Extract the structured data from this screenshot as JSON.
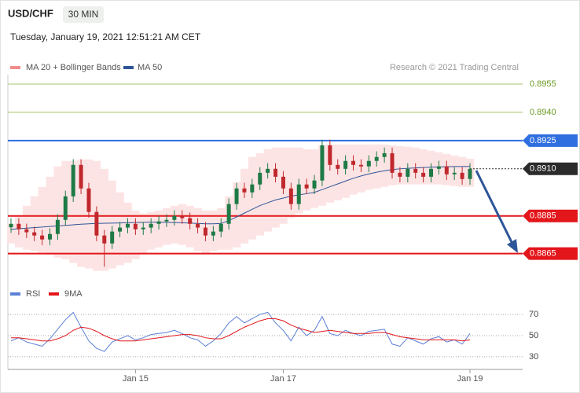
{
  "header": {
    "symbol": "USD/CHF",
    "timeframe": "30 MIN",
    "timestamp": "Tuesday, January 19, 2021 12:51:21 AM CET"
  },
  "chart_data": [
    {
      "type": "candlestick",
      "credit": "Research © 2021 Trading Central",
      "categories": [
        null,
        null,
        null,
        null,
        null,
        null,
        null,
        null,
        null,
        null,
        null,
        null,
        null,
        null,
        null,
        null,
        "Jan 15",
        null,
        null,
        null,
        null,
        null,
        null,
        null,
        null,
        null,
        null,
        null,
        null,
        null,
        null,
        null,
        null,
        null,
        null,
        "Jan 17",
        null,
        null,
        null,
        null,
        null,
        null,
        null,
        null,
        null,
        null,
        null,
        null,
        null,
        null,
        null,
        null,
        null,
        null,
        null,
        null,
        null,
        null,
        null,
        "Jan 19"
      ],
      "open": [
        0.8879,
        0.88808,
        0.88779,
        0.88763,
        0.88746,
        0.88725,
        0.88754,
        0.88829,
        0.88954,
        0.89121,
        0.88996,
        0.88871,
        0.88746,
        0.88704,
        0.88767,
        0.88788,
        0.88808,
        0.88779,
        0.88788,
        0.88808,
        0.88821,
        0.88829,
        0.8885,
        0.88838,
        0.88808,
        0.88788,
        0.88746,
        0.88767,
        0.88808,
        0.88913,
        0.88996,
        0.88975,
        0.89017,
        0.89079,
        0.891,
        0.89058,
        0.88996,
        0.88913,
        0.89017,
        0.88996,
        0.89038,
        0.89225,
        0.89121,
        0.891,
        0.89142,
        0.89121,
        0.89113,
        0.89142,
        0.89163,
        0.89183,
        0.89079,
        0.89058,
        0.891,
        0.89079,
        0.89058,
        0.891,
        0.89113,
        0.89071,
        0.89079,
        0.89046
      ],
      "high": [
        0.88838,
        0.88838,
        0.88809,
        0.88793,
        0.88776,
        0.88784,
        0.88859,
        0.88984,
        0.89151,
        0.89151,
        0.89026,
        0.88901,
        0.88776,
        0.88797,
        0.88818,
        0.88838,
        0.88838,
        0.88818,
        0.88838,
        0.88851,
        0.88859,
        0.8888,
        0.8888,
        0.88868,
        0.88838,
        0.88818,
        0.88797,
        0.88838,
        0.88943,
        0.89026,
        0.89026,
        0.89047,
        0.89109,
        0.8913,
        0.8913,
        0.89088,
        0.89026,
        0.89047,
        0.89047,
        0.89068,
        0.89255,
        0.89255,
        0.89151,
        0.89172,
        0.89172,
        0.89151,
        0.89172,
        0.89193,
        0.89213,
        0.89213,
        0.89109,
        0.8913,
        0.8913,
        0.89109,
        0.8913,
        0.89143,
        0.89143,
        0.89109,
        0.89109,
        0.8913
      ],
      "low": [
        0.8876,
        0.88749,
        0.88733,
        0.88716,
        0.88695,
        0.88695,
        0.88724,
        0.88799,
        0.88924,
        0.88966,
        0.88841,
        0.88716,
        0.8858,
        0.88674,
        0.88737,
        0.88758,
        0.88749,
        0.88749,
        0.88758,
        0.88778,
        0.88791,
        0.88799,
        0.88808,
        0.88778,
        0.88758,
        0.88716,
        0.88716,
        0.88737,
        0.88778,
        0.88883,
        0.88945,
        0.88945,
        0.88987,
        0.89049,
        0.89028,
        0.88966,
        0.88883,
        0.88883,
        0.88966,
        0.88966,
        0.89008,
        0.89091,
        0.8907,
        0.8907,
        0.89091,
        0.89083,
        0.89083,
        0.89112,
        0.89133,
        0.89049,
        0.89028,
        0.89028,
        0.89049,
        0.89028,
        0.89028,
        0.8907,
        0.89041,
        0.89041,
        0.89016,
        0.89016
      ],
      "close": [
        0.88808,
        0.88779,
        0.88763,
        0.88746,
        0.88725,
        0.88754,
        0.88829,
        0.88954,
        0.89121,
        0.88996,
        0.88871,
        0.88746,
        0.88704,
        0.88767,
        0.88788,
        0.88808,
        0.88779,
        0.88788,
        0.88808,
        0.88821,
        0.88829,
        0.8885,
        0.88838,
        0.88808,
        0.88788,
        0.88746,
        0.88767,
        0.88808,
        0.88913,
        0.88996,
        0.88975,
        0.89017,
        0.89079,
        0.891,
        0.89058,
        0.88996,
        0.88913,
        0.89017,
        0.88996,
        0.89038,
        0.89225,
        0.89121,
        0.891,
        0.89142,
        0.89121,
        0.89113,
        0.89142,
        0.89163,
        0.89183,
        0.89079,
        0.89058,
        0.891,
        0.89079,
        0.89058,
        0.891,
        0.89113,
        0.89071,
        0.89079,
        0.89046,
        0.891
      ],
      "up_color": "#1e7a46",
      "down_color": "#c0282d",
      "series": [
        {
          "name": "MA 20 + Bollinger Bands",
          "color": "#f08c8c",
          "band_color": "#fde4e4",
          "upper": [
            0.88808,
            0.8885,
            0.88904,
            0.88954,
            0.89004,
            0.89058,
            0.89113,
            0.89142,
            0.89142,
            0.8915,
            0.8915,
            0.89142,
            0.891,
            0.89038,
            0.88975,
            0.88921,
            0.88879,
            0.88863,
            0.88871,
            0.88879,
            0.88892,
            0.88904,
            0.88913,
            0.88904,
            0.88892,
            0.88879,
            0.88879,
            0.88892,
            0.88954,
            0.89029,
            0.891,
            0.89163,
            0.89183,
            0.89204,
            0.89213,
            0.89213,
            0.89213,
            0.89213,
            0.89204,
            0.89204,
            0.89225,
            0.89229,
            0.89229,
            0.89229,
            0.89229,
            0.89229,
            0.89229,
            0.89229,
            0.89229,
            0.89225,
            0.89221,
            0.89217,
            0.89213,
            0.89204,
            0.89196,
            0.89188,
            0.89179,
            0.89171,
            0.89163,
            0.89154
          ],
          "lower": [
            0.88704,
            0.88683,
            0.88671,
            0.88663,
            0.88654,
            0.88642,
            0.88629,
            0.88621,
            0.886,
            0.88579,
            0.88571,
            0.88558,
            0.88558,
            0.88571,
            0.88588,
            0.886,
            0.88621,
            0.88654,
            0.88671,
            0.88683,
            0.88696,
            0.88704,
            0.88696,
            0.88683,
            0.88663,
            0.88654,
            0.88663,
            0.88671,
            0.88671,
            0.88683,
            0.88704,
            0.88725,
            0.88746,
            0.88767,
            0.88788,
            0.88808,
            0.88838,
            0.88863,
            0.88879,
            0.88892,
            0.88904,
            0.88921,
            0.88933,
            0.88946,
            0.88963,
            0.88975,
            0.88988,
            0.88996,
            0.89004,
            0.89013,
            0.89017,
            0.89017,
            0.89017,
            0.89017,
            0.89017,
            0.89017,
            0.89013,
            0.89008,
            0.89004,
            0.89004
          ]
        },
        {
          "name": "MA 50",
          "color": "#2e5597",
          "values": [
            0.88779,
            0.88782,
            0.88785,
            0.88788,
            0.88791,
            0.88794,
            0.88797,
            0.888,
            0.88803,
            0.88806,
            0.88808,
            0.8881,
            0.88811,
            0.88812,
            0.88813,
            0.88814,
            0.88815,
            0.88816,
            0.88817,
            0.88817,
            0.88816,
            0.88815,
            0.88814,
            0.88812,
            0.8881,
            0.88808,
            0.88808,
            0.8881,
            0.88825,
            0.88845,
            0.88865,
            0.88885,
            0.88905,
            0.8892,
            0.88935,
            0.88945,
            0.88955,
            0.88962,
            0.88968,
            0.88975,
            0.8899,
            0.89005,
            0.8902,
            0.89035,
            0.8905,
            0.89062,
            0.89073,
            0.89082,
            0.8909,
            0.89096,
            0.891,
            0.89103,
            0.89105,
            0.89107,
            0.89109,
            0.8911,
            0.89111,
            0.89112,
            0.89112,
            0.89113
          ]
        }
      ],
      "levels": [
        {
          "value": 0.8955,
          "label": "0.8955",
          "color": "#a9c46a",
          "boxed": false,
          "dotted": false
        },
        {
          "value": 0.894,
          "label": "0.8940",
          "color": "#a9c46a",
          "boxed": false,
          "dotted": false
        },
        {
          "value": 0.8925,
          "label": "0.8925",
          "color": "#2f6fe0",
          "boxed": true,
          "dotted": false
        },
        {
          "value": 0.891,
          "label": "0.8910",
          "color": "#2b2b2b",
          "boxed": true,
          "dotted": true
        },
        {
          "value": 0.8885,
          "label": "0.8885",
          "color": "#e3161b",
          "boxed": true,
          "dotted": false
        },
        {
          "value": 0.8865,
          "label": "0.8865",
          "color": "#e3161b",
          "boxed": true,
          "dotted": false
        }
      ],
      "ylim": [
        0.8854,
        0.896
      ]
    },
    {
      "type": "line",
      "series": [
        {
          "name": "RSI",
          "color": "#5b7fd6",
          "values": [
            45,
            48,
            44,
            42,
            40,
            47,
            56,
            65,
            72,
            58,
            45,
            38,
            35,
            44,
            47,
            50,
            46,
            48,
            51,
            52,
            53,
            55,
            52,
            48,
            46,
            40,
            45,
            52,
            62,
            68,
            62,
            66,
            70,
            72,
            62,
            55,
            45,
            58,
            50,
            55,
            68,
            52,
            50,
            55,
            52,
            50,
            54,
            55,
            56,
            42,
            40,
            48,
            45,
            42,
            47,
            49,
            44,
            46,
            42,
            52
          ]
        },
        {
          "name": "9MA",
          "color": "#e3161b",
          "values": [
            48,
            48,
            47,
            46,
            45,
            45,
            47,
            50,
            55,
            58,
            57,
            54,
            50,
            47,
            45,
            45,
            45,
            46,
            47,
            48,
            49,
            50,
            51,
            51,
            50,
            48,
            47,
            47,
            50,
            54,
            58,
            61,
            64,
            66,
            66,
            64,
            60,
            57,
            55,
            53,
            54,
            55,
            54,
            53,
            52,
            52,
            52,
            53,
            53,
            51,
            49,
            48,
            47,
            46,
            46,
            46,
            46,
            46,
            45,
            46
          ]
        }
      ],
      "ylim": [
        24,
        76
      ],
      "yticks": [
        70,
        50,
        30
      ],
      "grid": true
    }
  ]
}
